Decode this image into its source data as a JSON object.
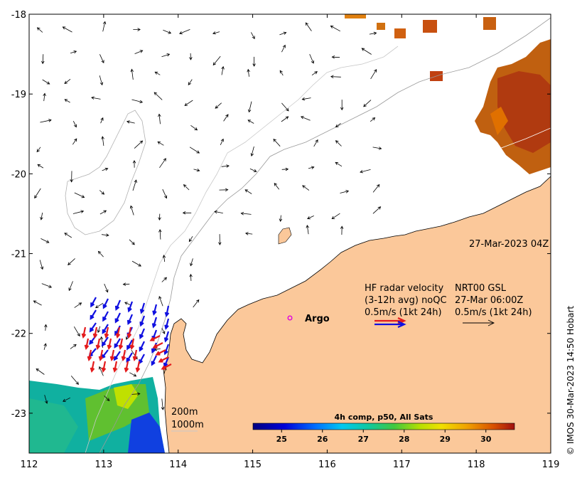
{
  "map": {
    "lon_range": [
      112,
      119
    ],
    "lat_range": [
      -23.5,
      -18
    ],
    "lon_ticks": [
      "112",
      "113",
      "114",
      "115",
      "116",
      "117",
      "118",
      "119"
    ],
    "lat_ticks": [
      "-18",
      "-19",
      "-20",
      "-21",
      "-22",
      "-23"
    ],
    "colors": {
      "land": "#fbc89a",
      "radar_red": "#e41a1c",
      "radar_blue": "#1010e0",
      "argo": "#e000e0"
    }
  },
  "labels": {
    "timestamp": "27-Mar-2023 04Z",
    "hf_line1": "HF radar velocity",
    "hf_line2": "(3-12h avg) noQC",
    "hf_line3": "0.5m/s (1kt 24h)",
    "nrt_line1": "NRT00 GSL",
    "nrt_line2": "27-Mar 06:00Z",
    "nrt_line3": "0.5m/s (1kt 24h)",
    "argo": "Argo",
    "iso_200": "200m",
    "iso_1000": "1000m",
    "credit": "© IMOS 30-Mar-2023 14:50 Hobart"
  },
  "colorbar": {
    "title": "4h comp, p50, All Sats",
    "ticks": [
      "25",
      "26",
      "27",
      "28",
      "29",
      "30"
    ],
    "range": [
      24.3,
      30.7
    ]
  }
}
